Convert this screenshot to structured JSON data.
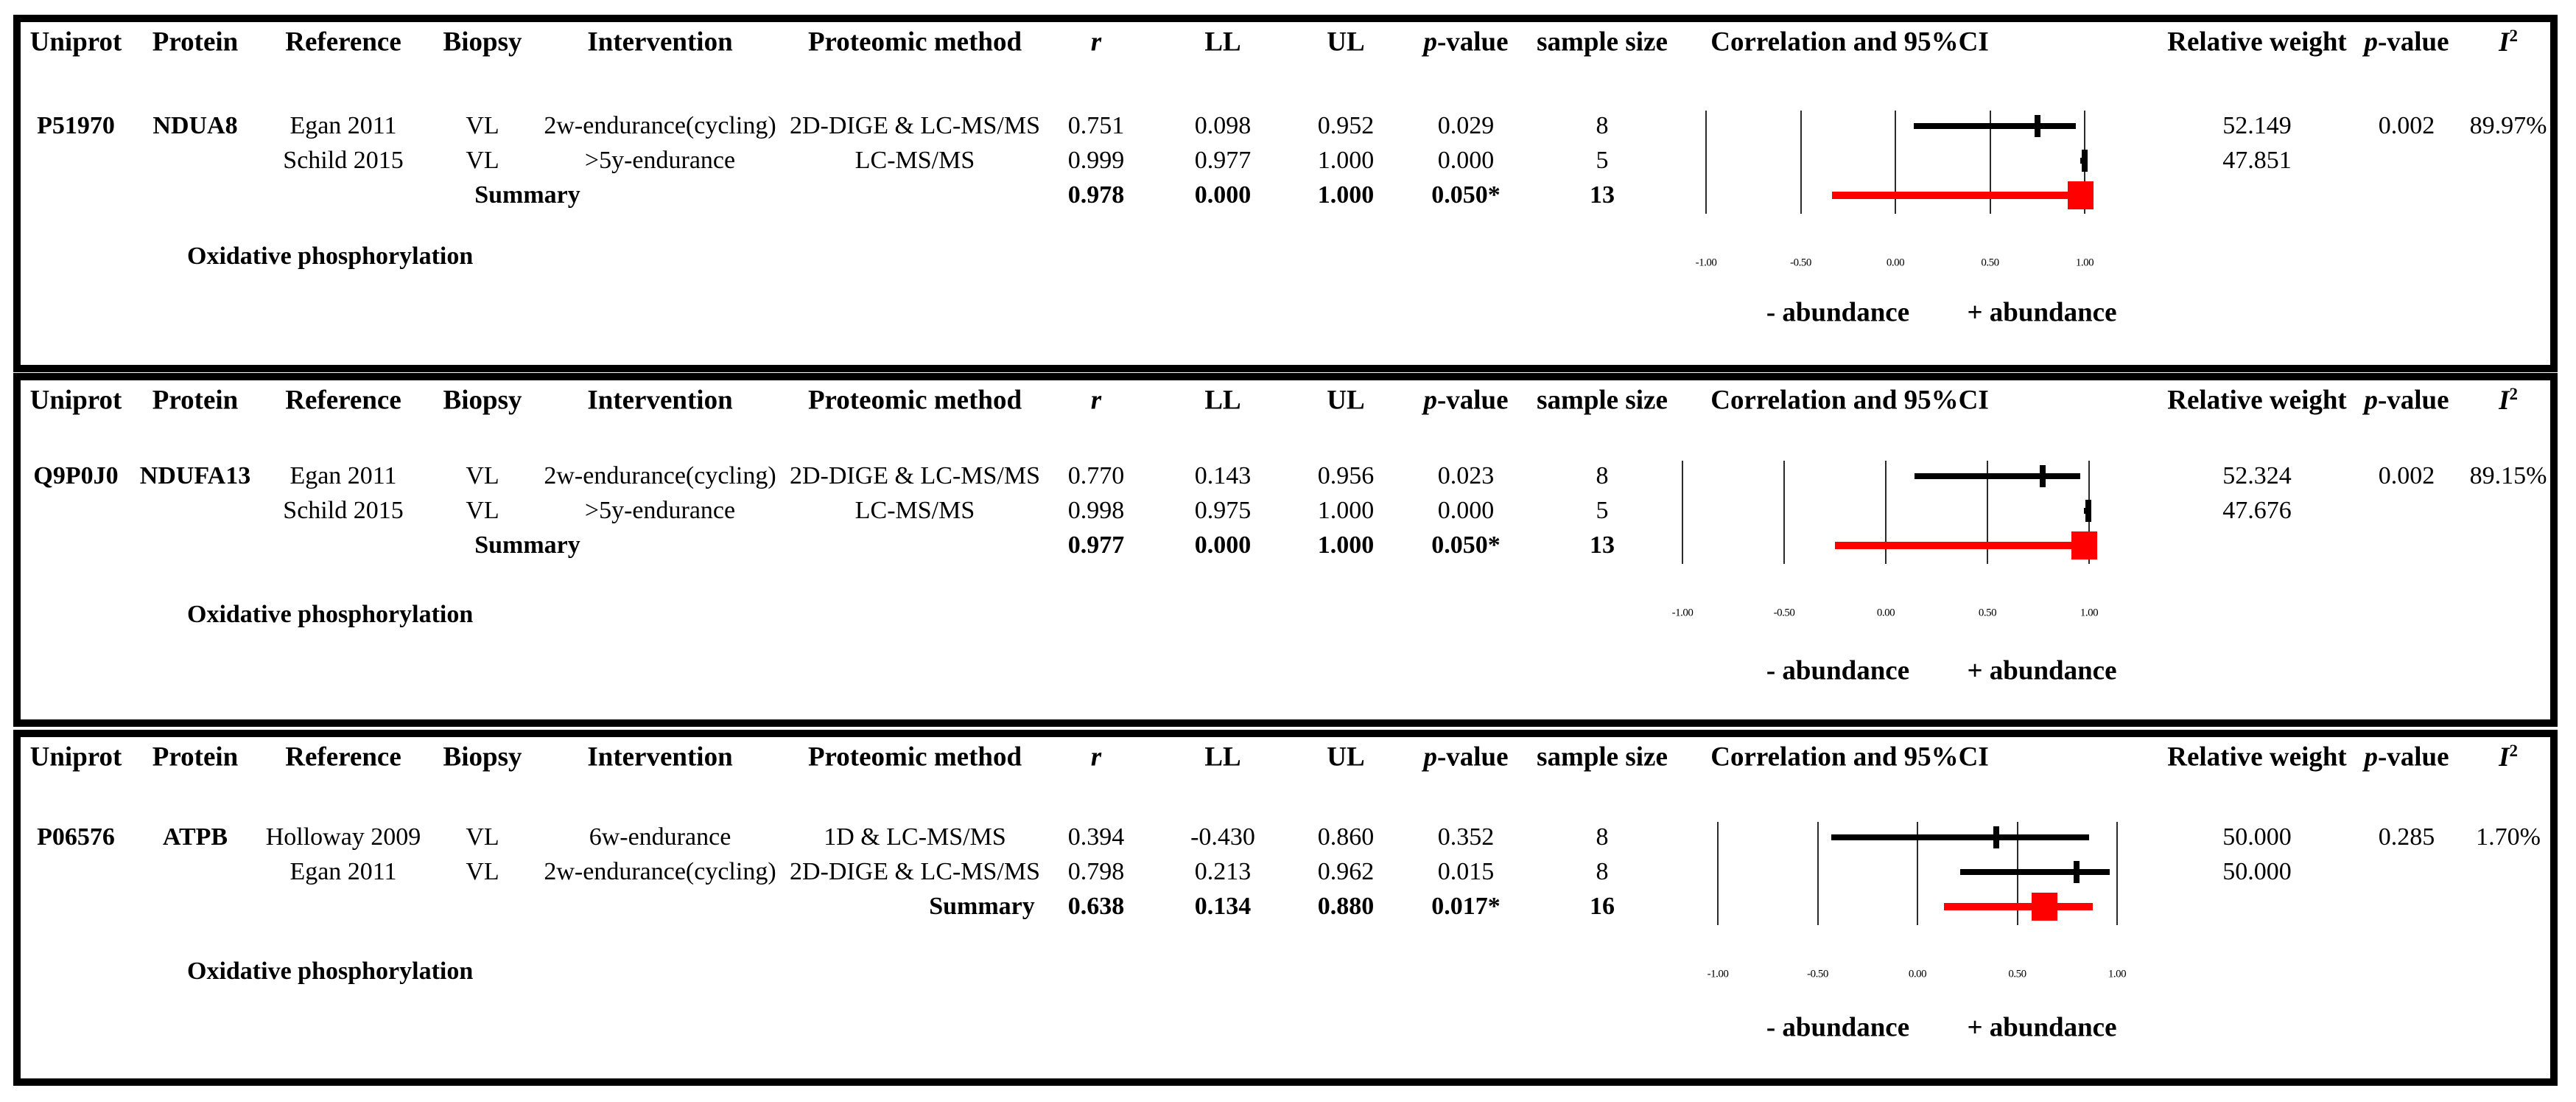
{
  "columns": {
    "uniprot": "Uniprot",
    "protein": "Protein",
    "reference": "Reference",
    "biopsy": "Biopsy",
    "intervention": "Intervention",
    "method": "Proteomic method",
    "r": "r",
    "ll": "LL",
    "ul": "UL",
    "p_italic": "p",
    "p_rest": "-value",
    "sample": "sample size",
    "ci_title": "Correlation and 95%CI",
    "rel_weight": "Relative weight",
    "i2_letter": "I",
    "i2_sup": "2"
  },
  "forest_ticks": {
    "labels": [
      "-1.00",
      "-0.50",
      "0.00",
      "0.50",
      "1.00"
    ],
    "values": [
      -1,
      -0.5,
      0,
      0.5,
      1
    ]
  },
  "abundance": {
    "negative": "- abundance",
    "positive": "+ abundance"
  },
  "colors": {
    "summary_marker": "#FF0000",
    "study_marker": "#000000",
    "border": "#000000"
  },
  "chart_data": [
    {
      "type": "forest",
      "uniprot": "P51970",
      "protein": "NDUA8",
      "pathway": "Oxidative phosphorylation",
      "xlim": [
        -1,
        1
      ],
      "studies": [
        {
          "reference": "Egan 2011",
          "biopsy": "VL",
          "intervention": "2w-endurance(cycling)",
          "method": "2D-DIGE & LC-MS/MS",
          "r": "0.751",
          "ll": "0.098",
          "ul": "0.952",
          "p": "0.029",
          "n": "8",
          "rel_weight": "52.149"
        },
        {
          "reference": "Schild 2015",
          "biopsy": "VL",
          "intervention": ">5y-endurance",
          "method": "LC-MS/MS",
          "r": "0.999",
          "ll": "0.977",
          "ul": "1.000",
          "p": "0.000",
          "n": "5",
          "rel_weight": "47.851"
        }
      ],
      "summary": {
        "label": "Summary",
        "r": "0.978",
        "ll": "0.000",
        "ul": "1.000",
        "p": "0.050*",
        "n": "13",
        "plot_ll": -0.335,
        "plot_ul": 1.0
      },
      "model_p": "0.002",
      "i2": "89.97%"
    },
    {
      "type": "forest",
      "uniprot": "Q9P0J0",
      "protein": "NDUFA13",
      "pathway": "Oxidative phosphorylation",
      "xlim": [
        -1,
        1
      ],
      "studies": [
        {
          "reference": "Egan 2011",
          "biopsy": "VL",
          "intervention": "2w-endurance(cycling)",
          "method": "2D-DIGE & LC-MS/MS",
          "r": "0.770",
          "ll": "0.143",
          "ul": "0.956",
          "p": "0.023",
          "n": "8",
          "rel_weight": "52.324"
        },
        {
          "reference": "Schild 2015",
          "biopsy": "VL",
          "intervention": ">5y-endurance",
          "method": "LC-MS/MS",
          "r": "0.998",
          "ll": "0.975",
          "ul": "1.000",
          "p": "0.000",
          "n": "5",
          "rel_weight": "47.676"
        }
      ],
      "summary": {
        "label": "Summary",
        "r": "0.977",
        "ll": "0.000",
        "ul": "1.000",
        "p": "0.050*",
        "n": "13",
        "plot_ll": -0.25,
        "plot_ul": 1.0
      },
      "model_p": "0.002",
      "i2": "89.15%"
    },
    {
      "type": "forest",
      "uniprot": "P06576",
      "protein": "ATPB",
      "pathway": "Oxidative phosphorylation",
      "xlim": [
        -1,
        1
      ],
      "studies": [
        {
          "reference": "Holloway 2009",
          "biopsy": "VL",
          "intervention": "6w-endurance",
          "method": "1D & LC-MS/MS",
          "r": "0.394",
          "ll": "-0.430",
          "ul": "0.860",
          "p": "0.352",
          "n": "8",
          "rel_weight": "50.000"
        },
        {
          "reference": "Egan 2011",
          "biopsy": "VL",
          "intervention": "2w-endurance(cycling)",
          "method": "2D-DIGE & LC-MS/MS",
          "r": "0.798",
          "ll": "0.213",
          "ul": "0.962",
          "p": "0.015",
          "n": "8",
          "rel_weight": "50.000"
        }
      ],
      "summary": {
        "label": "Summary",
        "r": "0.638",
        "ll": "0.134",
        "ul": "0.880",
        "p": "0.017*",
        "n": "16",
        "plot_ll": 0.134,
        "plot_ul": 0.88
      },
      "model_p": "0.285",
      "i2": "1.70%"
    }
  ]
}
